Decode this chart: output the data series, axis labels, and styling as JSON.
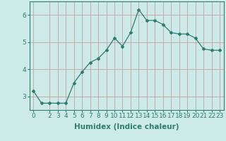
{
  "x": [
    0,
    1,
    2,
    3,
    4,
    5,
    6,
    7,
    8,
    9,
    10,
    11,
    12,
    13,
    14,
    15,
    16,
    17,
    18,
    19,
    20,
    21,
    22,
    23
  ],
  "y": [
    3.2,
    2.75,
    2.75,
    2.75,
    2.75,
    3.5,
    3.9,
    4.25,
    4.4,
    4.7,
    5.15,
    4.85,
    5.35,
    6.2,
    5.8,
    5.8,
    5.65,
    5.35,
    5.3,
    5.3,
    5.15,
    4.75,
    4.7,
    4.7
  ],
  "xlabel": "Humidex (Indice chaleur)",
  "ylim": [
    2.5,
    6.5
  ],
  "xlim": [
    -0.5,
    23.5
  ],
  "yticks": [
    3,
    4,
    5,
    6
  ],
  "xticks": [
    0,
    2,
    3,
    4,
    5,
    6,
    7,
    8,
    9,
    10,
    11,
    12,
    13,
    14,
    15,
    16,
    17,
    18,
    19,
    20,
    21,
    22,
    23
  ],
  "xtick_labels": [
    "0",
    "2",
    "3",
    "4",
    "5",
    "6",
    "7",
    "8",
    "9",
    "10",
    "11",
    "12",
    "13",
    "14",
    "15",
    "16",
    "17",
    "18",
    "19",
    "20",
    "21",
    "22",
    "23"
  ],
  "line_color": "#2e7d6e",
  "marker": "D",
  "marker_size": 2.0,
  "bg_color": "#cceae8",
  "grid_color": "#c8a0a0",
  "xlabel_fontsize": 7.5,
  "tick_fontsize": 6.5,
  "spine_color": "#2e7d6e"
}
